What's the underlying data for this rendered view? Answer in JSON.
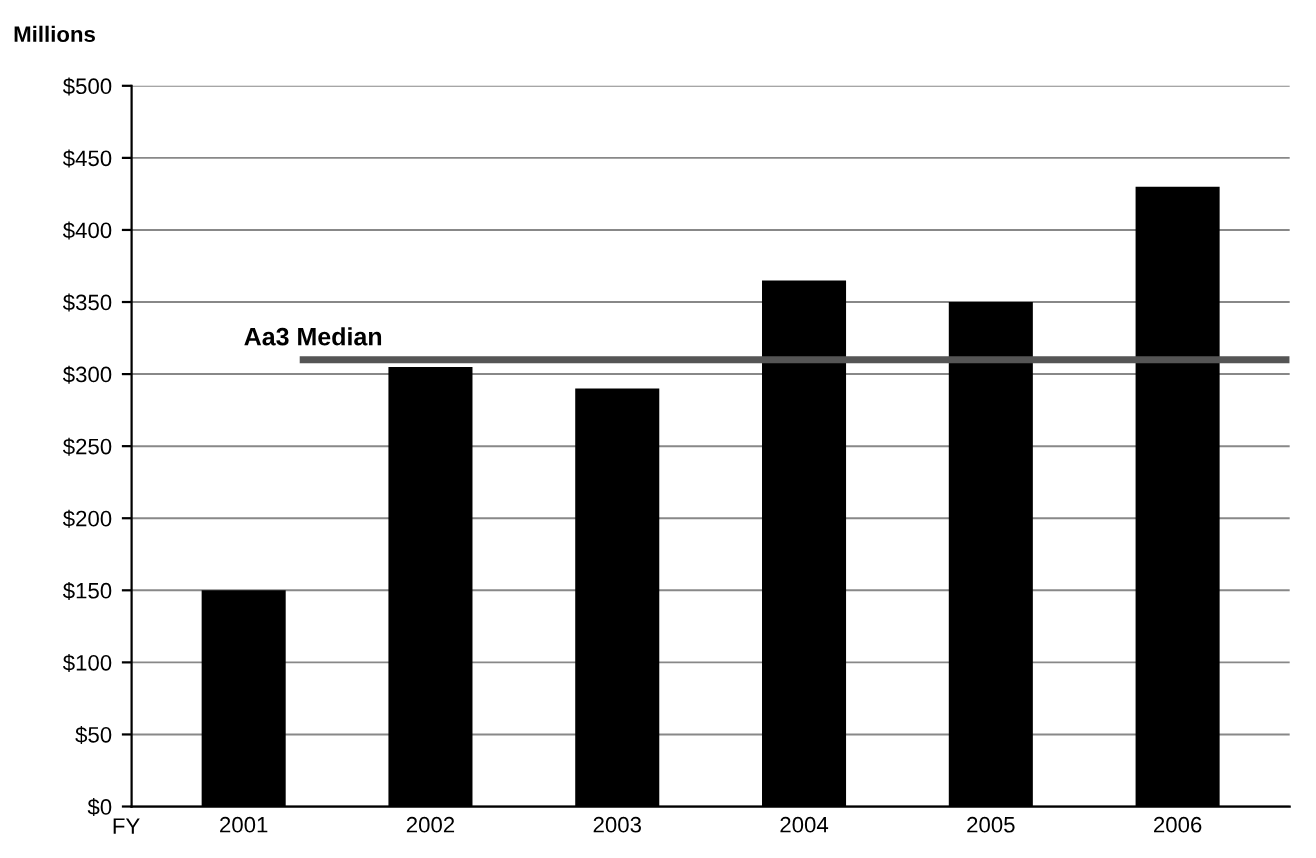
{
  "chart_data": {
    "type": "bar",
    "ylabel": "Millions",
    "xlabel": "FY",
    "categories": [
      "2001",
      "2002",
      "2003",
      "2004",
      "2005",
      "2006"
    ],
    "values": [
      150,
      305,
      290,
      365,
      350,
      430
    ],
    "color": "#000000",
    "ylim": [
      0,
      500
    ],
    "yticks": [
      {
        "value": 0,
        "label": "$0"
      },
      {
        "value": 50,
        "label": "$50"
      },
      {
        "value": 100,
        "label": "$100"
      },
      {
        "value": 150,
        "label": "$150"
      },
      {
        "value": 200,
        "label": "$200"
      },
      {
        "value": 250,
        "label": "$250"
      },
      {
        "value": 300,
        "label": "$300"
      },
      {
        "value": 350,
        "label": "$350"
      },
      {
        "value": 400,
        "label": "$400"
      },
      {
        "value": 450,
        "label": "$450"
      },
      {
        "value": 500,
        "label": "$500"
      }
    ],
    "grid": "y",
    "ref_lines": [
      {
        "axis": "y",
        "value": 310,
        "label": "Aa3 Median",
        "color": "#555555"
      }
    ]
  }
}
